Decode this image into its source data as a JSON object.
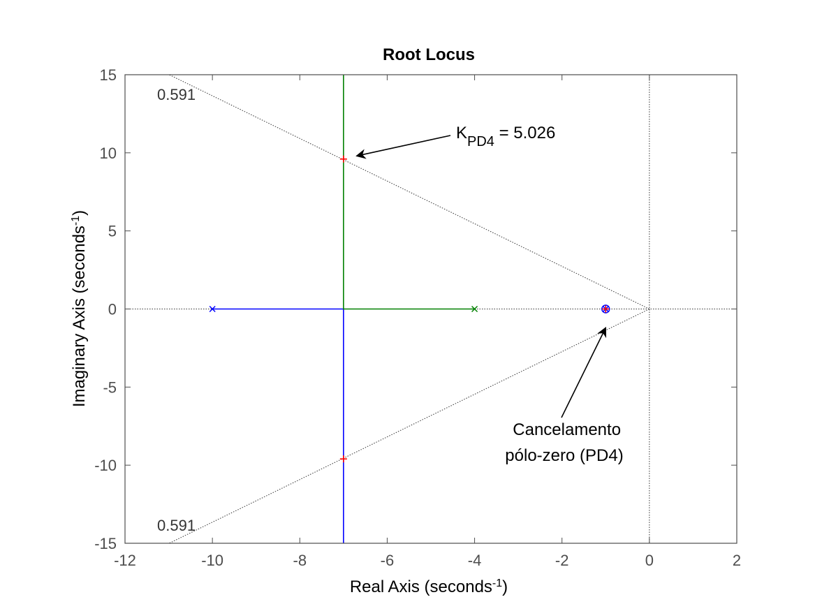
{
  "chart_data": {
    "type": "line",
    "title": "Root Locus",
    "xlabel": {
      "text": "Real Axis (seconds",
      "sup": "-1",
      "tail": ")"
    },
    "ylabel": {
      "text": "Imaginary Axis (seconds",
      "sup": "-1",
      "tail": ")"
    },
    "xlim": [
      -12,
      2
    ],
    "ylim": [
      -15,
      15
    ],
    "xticks": [
      -12,
      -10,
      -8,
      -6,
      -4,
      -2,
      0,
      2
    ],
    "yticks": [
      -15,
      -10,
      -5,
      0,
      5,
      10,
      15
    ],
    "xtick_labels": [
      "-12",
      "-10",
      "-8",
      "-6",
      "-4",
      "-2",
      "0",
      "2"
    ],
    "ytick_labels": [
      "-15",
      "-10",
      "-5",
      "0",
      "5",
      "10",
      "15"
    ],
    "grid": false,
    "series": [
      {
        "color": "#0000ff",
        "points": [
          [
            -10,
            0
          ],
          [
            -7,
            0
          ],
          [
            -7,
            -15
          ]
        ]
      },
      {
        "color": "#008000",
        "points": [
          [
            -4,
            0
          ],
          [
            -7,
            0
          ],
          [
            -7,
            15
          ]
        ]
      }
    ],
    "poles": [
      {
        "x": -10,
        "y": 0,
        "color": "#0000ff"
      },
      {
        "x": -4,
        "y": 0,
        "color": "#008000"
      },
      {
        "x": -1,
        "y": 0,
        "color": "#0000ff"
      }
    ],
    "zeros": [
      {
        "x": -1,
        "y": 0,
        "color": "#0000ff"
      }
    ],
    "closed_loop_poles": [
      {
        "x": -7,
        "y": 9.6
      },
      {
        "x": -7,
        "y": -9.6
      },
      {
        "x": -1,
        "y": 0
      }
    ],
    "damping_line": {
      "zeta": 0.591,
      "label_top": "0.591",
      "label_bottom": "0.591"
    },
    "annotations": [
      {
        "text": "K",
        "sub": "PD4",
        "tail": " = 5.026",
        "arrow_to": [
          -6.7,
          9.8
        ]
      },
      {
        "lines": [
          "Cancelamento",
          "pólo-zero (PD4)"
        ],
        "arrow_to": [
          -1.0,
          -1.2
        ]
      }
    ],
    "colors": {
      "axis": "#4d4d4d",
      "pole_marker": "#ff0000",
      "guide": "#333333"
    }
  }
}
